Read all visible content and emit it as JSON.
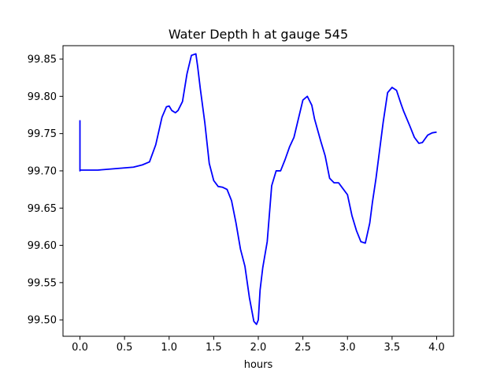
{
  "chart_data": {
    "type": "line",
    "title": "Water Depth h at gauge 545",
    "xlabel": "hours",
    "ylabel": "",
    "xlim": [
      -0.19,
      4.19
    ],
    "ylim": [
      99.478,
      99.868
    ],
    "xticks": [
      0.0,
      0.5,
      1.0,
      1.5,
      2.0,
      2.5,
      3.0,
      3.5,
      4.0
    ],
    "xtick_labels": [
      "0.0",
      "0.5",
      "1.0",
      "1.5",
      "2.0",
      "2.5",
      "3.0",
      "3.5",
      "4.0"
    ],
    "yticks": [
      99.5,
      99.55,
      99.6,
      99.65,
      99.7,
      99.75,
      99.8,
      99.85
    ],
    "ytick_labels": [
      "99.50",
      "99.55",
      "99.60",
      "99.65",
      "99.70",
      "99.75",
      "99.80",
      "99.85"
    ],
    "grid": false,
    "series": [
      {
        "color": "#0000ff",
        "x": [
          0.0,
          0.0,
          0.0,
          0.2,
          0.4,
          0.6,
          0.7,
          0.78,
          0.85,
          0.92,
          0.97,
          1.0,
          1.03,
          1.07,
          1.1,
          1.15,
          1.2,
          1.25,
          1.3,
          1.32,
          1.35,
          1.4,
          1.45,
          1.5,
          1.55,
          1.6,
          1.65,
          1.7,
          1.75,
          1.8,
          1.85,
          1.9,
          1.95,
          1.98,
          2.0,
          2.02,
          2.05,
          2.1,
          2.15,
          2.2,
          2.25,
          2.3,
          2.35,
          2.4,
          2.45,
          2.5,
          2.55,
          2.6,
          2.63,
          2.7,
          2.75,
          2.8,
          2.85,
          2.9,
          2.95,
          3.0,
          3.05,
          3.1,
          3.15,
          3.2,
          3.25,
          3.28,
          3.32,
          3.4,
          3.45,
          3.5,
          3.55,
          3.6,
          3.63,
          3.7,
          3.75,
          3.8,
          3.84,
          3.87,
          3.9,
          3.95,
          4.0
        ],
        "y": [
          99.768,
          99.7,
          99.701,
          99.701,
          99.703,
          99.705,
          99.708,
          99.712,
          99.735,
          99.772,
          99.786,
          99.787,
          99.781,
          99.778,
          99.781,
          99.793,
          99.83,
          99.855,
          99.857,
          99.84,
          99.81,
          99.765,
          99.71,
          99.687,
          99.679,
          99.678,
          99.675,
          99.66,
          99.63,
          99.595,
          99.572,
          99.53,
          99.498,
          99.494,
          99.5,
          99.54,
          99.57,
          99.605,
          99.68,
          99.7,
          99.7,
          99.715,
          99.732,
          99.745,
          99.77,
          99.795,
          99.8,
          99.788,
          99.77,
          99.74,
          99.72,
          99.69,
          99.684,
          99.684,
          99.676,
          99.668,
          99.64,
          99.62,
          99.605,
          99.603,
          99.63,
          99.658,
          99.69,
          99.765,
          99.805,
          99.812,
          99.808,
          99.79,
          99.78,
          99.76,
          99.745,
          99.737,
          99.738,
          99.743,
          99.748,
          99.751,
          99.752
        ]
      }
    ]
  }
}
